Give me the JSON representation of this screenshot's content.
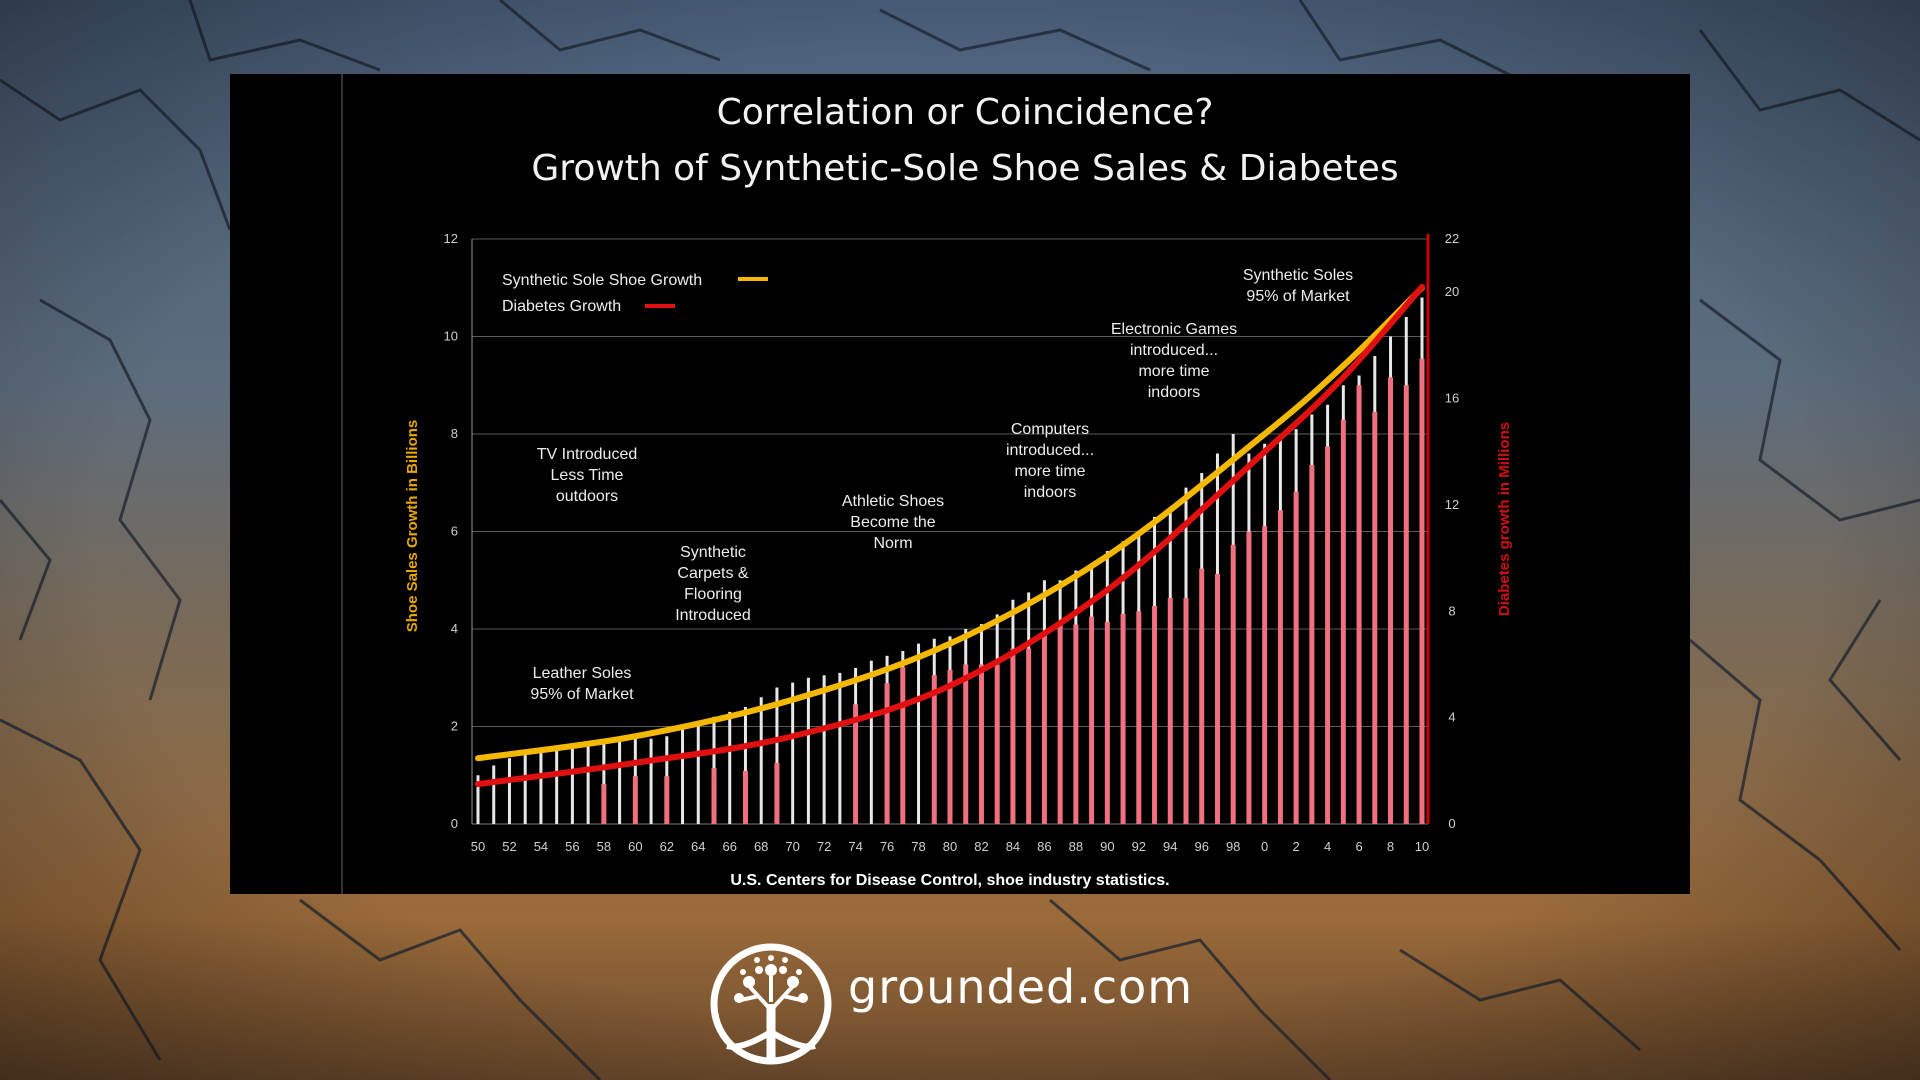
{
  "chart_data": {
    "type": "bar+line",
    "title_lines": [
      "Correlation or Coincidence?",
      "Growth of Synthetic-Sole Shoe Sales & Diabetes"
    ],
    "ylabel_left": "Shoe Sales Growth in Billions",
    "ylabel_right": "Diabetes growth in Millions",
    "source": "U.S. Centers for Disease Control, shoe industry statistics.",
    "ylim_left": [
      0,
      12
    ],
    "ylim_right": [
      0,
      22
    ],
    "yticks_left": [
      "0",
      "2",
      "4",
      "6",
      "8",
      "10",
      "12"
    ],
    "yticks_right": [
      "0",
      "4",
      "8",
      "12",
      "16",
      "20",
      "22"
    ],
    "x_labels": [
      "50",
      "52",
      "54",
      "56",
      "58",
      "60",
      "62",
      "64",
      "66",
      "68",
      "70",
      "72",
      "74",
      "76",
      "78",
      "80",
      "82",
      "84",
      "86",
      "88",
      "90",
      "92",
      "94",
      "96",
      "98",
      "0",
      "2",
      "4",
      "6",
      "8",
      "10"
    ],
    "legend": [
      {
        "name": "Synthetic Sole Shoe Growth",
        "color": "#f5b800"
      },
      {
        "name": "Diabetes Growth",
        "color": "#e01010"
      }
    ],
    "series": [
      {
        "name": "Synthetic Sole Shoe Growth",
        "axis": "left",
        "x": [
          1950,
          1960,
          1970,
          1980,
          1990,
          2000,
          2005,
          2010
        ],
        "values": [
          1.35,
          1.8,
          2.55,
          3.7,
          5.5,
          8.0,
          9.4,
          11.0
        ]
      },
      {
        "name": "Diabetes Growth",
        "axis": "right",
        "x": [
          1950,
          1960,
          1970,
          1980,
          1990,
          2000,
          2005,
          2010
        ],
        "values": [
          1.5,
          2.3,
          3.3,
          5.2,
          8.8,
          14.0,
          16.8,
          20.2
        ]
      }
    ],
    "bars_white_years": [
      1950,
      1951,
      1952,
      1953,
      1954,
      1955,
      1956,
      1957,
      1958,
      1959,
      1960,
      1961,
      1962,
      1963,
      1964,
      1965,
      1966,
      1967,
      1968,
      1969,
      1970,
      1971,
      1972,
      1973,
      1974,
      1975,
      1976,
      1977,
      1978,
      1979,
      1980,
      1981,
      1982,
      1983,
      1984,
      1985,
      1986,
      1987,
      1988,
      1989,
      1990,
      1991,
      1992,
      1993,
      1994,
      1995,
      1996,
      1997,
      1998,
      1999,
      2000,
      2001,
      2002,
      2003,
      2004,
      2005,
      2006,
      2007,
      2008,
      2009,
      2010
    ],
    "bars_white_values": [
      1.0,
      1.2,
      1.35,
      1.45,
      1.55,
      1.6,
      1.65,
      1.7,
      1.7,
      1.75,
      1.8,
      1.75,
      1.8,
      2.0,
      2.1,
      2.2,
      2.3,
      2.4,
      2.6,
      2.8,
      2.9,
      3.0,
      3.05,
      3.1,
      3.2,
      3.35,
      3.45,
      3.55,
      3.7,
      3.8,
      3.85,
      4.0,
      4.1,
      4.3,
      4.6,
      4.75,
      5.0,
      5.0,
      5.2,
      5.3,
      5.6,
      5.8,
      6.0,
      6.3,
      6.5,
      6.9,
      7.2,
      7.6,
      8.0,
      7.6,
      7.8,
      7.9,
      8.1,
      8.4,
      8.6,
      9.0,
      9.2,
      9.6,
      10.0,
      10.4,
      10.8
    ],
    "bars_red_years": [
      1958,
      1960,
      1962,
      1965,
      1967,
      1969,
      1974,
      1976,
      1977,
      1979,
      1980,
      1981,
      1982,
      1983,
      1984,
      1985,
      1986,
      1987,
      1988,
      1989,
      1990,
      1991,
      1992,
      1993,
      1994,
      1995,
      1996,
      1997,
      1998,
      1999,
      2000,
      2001,
      2002,
      2003,
      2004,
      2005,
      2006,
      2007,
      2008,
      2009,
      2010
    ],
    "bars_red_values": [
      1.5,
      1.8,
      1.8,
      2.1,
      2.0,
      2.3,
      4.5,
      5.3,
      5.9,
      5.6,
      5.8,
      6.0,
      6.0,
      6.0,
      6.6,
      6.6,
      7.1,
      7.5,
      7.5,
      7.8,
      7.6,
      7.9,
      8.0,
      8.2,
      8.5,
      8.5,
      9.6,
      9.4,
      10.5,
      11.0,
      11.2,
      11.8,
      12.5,
      13.5,
      14.2,
      15.2,
      16.5,
      15.5,
      16.8,
      16.5,
      17.5
    ],
    "annotations": [
      {
        "lines": [
          "Leather Soles",
          "95% of Market"
        ]
      },
      {
        "lines": [
          "TV Introduced",
          "Less Time",
          "outdoors"
        ]
      },
      {
        "lines": [
          "Synthetic",
          "Carpets &",
          "Flooring",
          "Introduced"
        ]
      },
      {
        "lines": [
          "Athletic Shoes",
          "Become the",
          "Norm"
        ]
      },
      {
        "lines": [
          "Computers",
          "introduced...",
          "more time",
          "indoors"
        ]
      },
      {
        "lines": [
          "Electronic Games",
          "introduced...",
          "more time",
          "indoors"
        ]
      },
      {
        "lines": [
          "Synthetic Soles",
          "95% of Market"
        ]
      }
    ],
    "grid": true,
    "legend_position": "top-left"
  },
  "brand": {
    "text": "grounded.com"
  }
}
